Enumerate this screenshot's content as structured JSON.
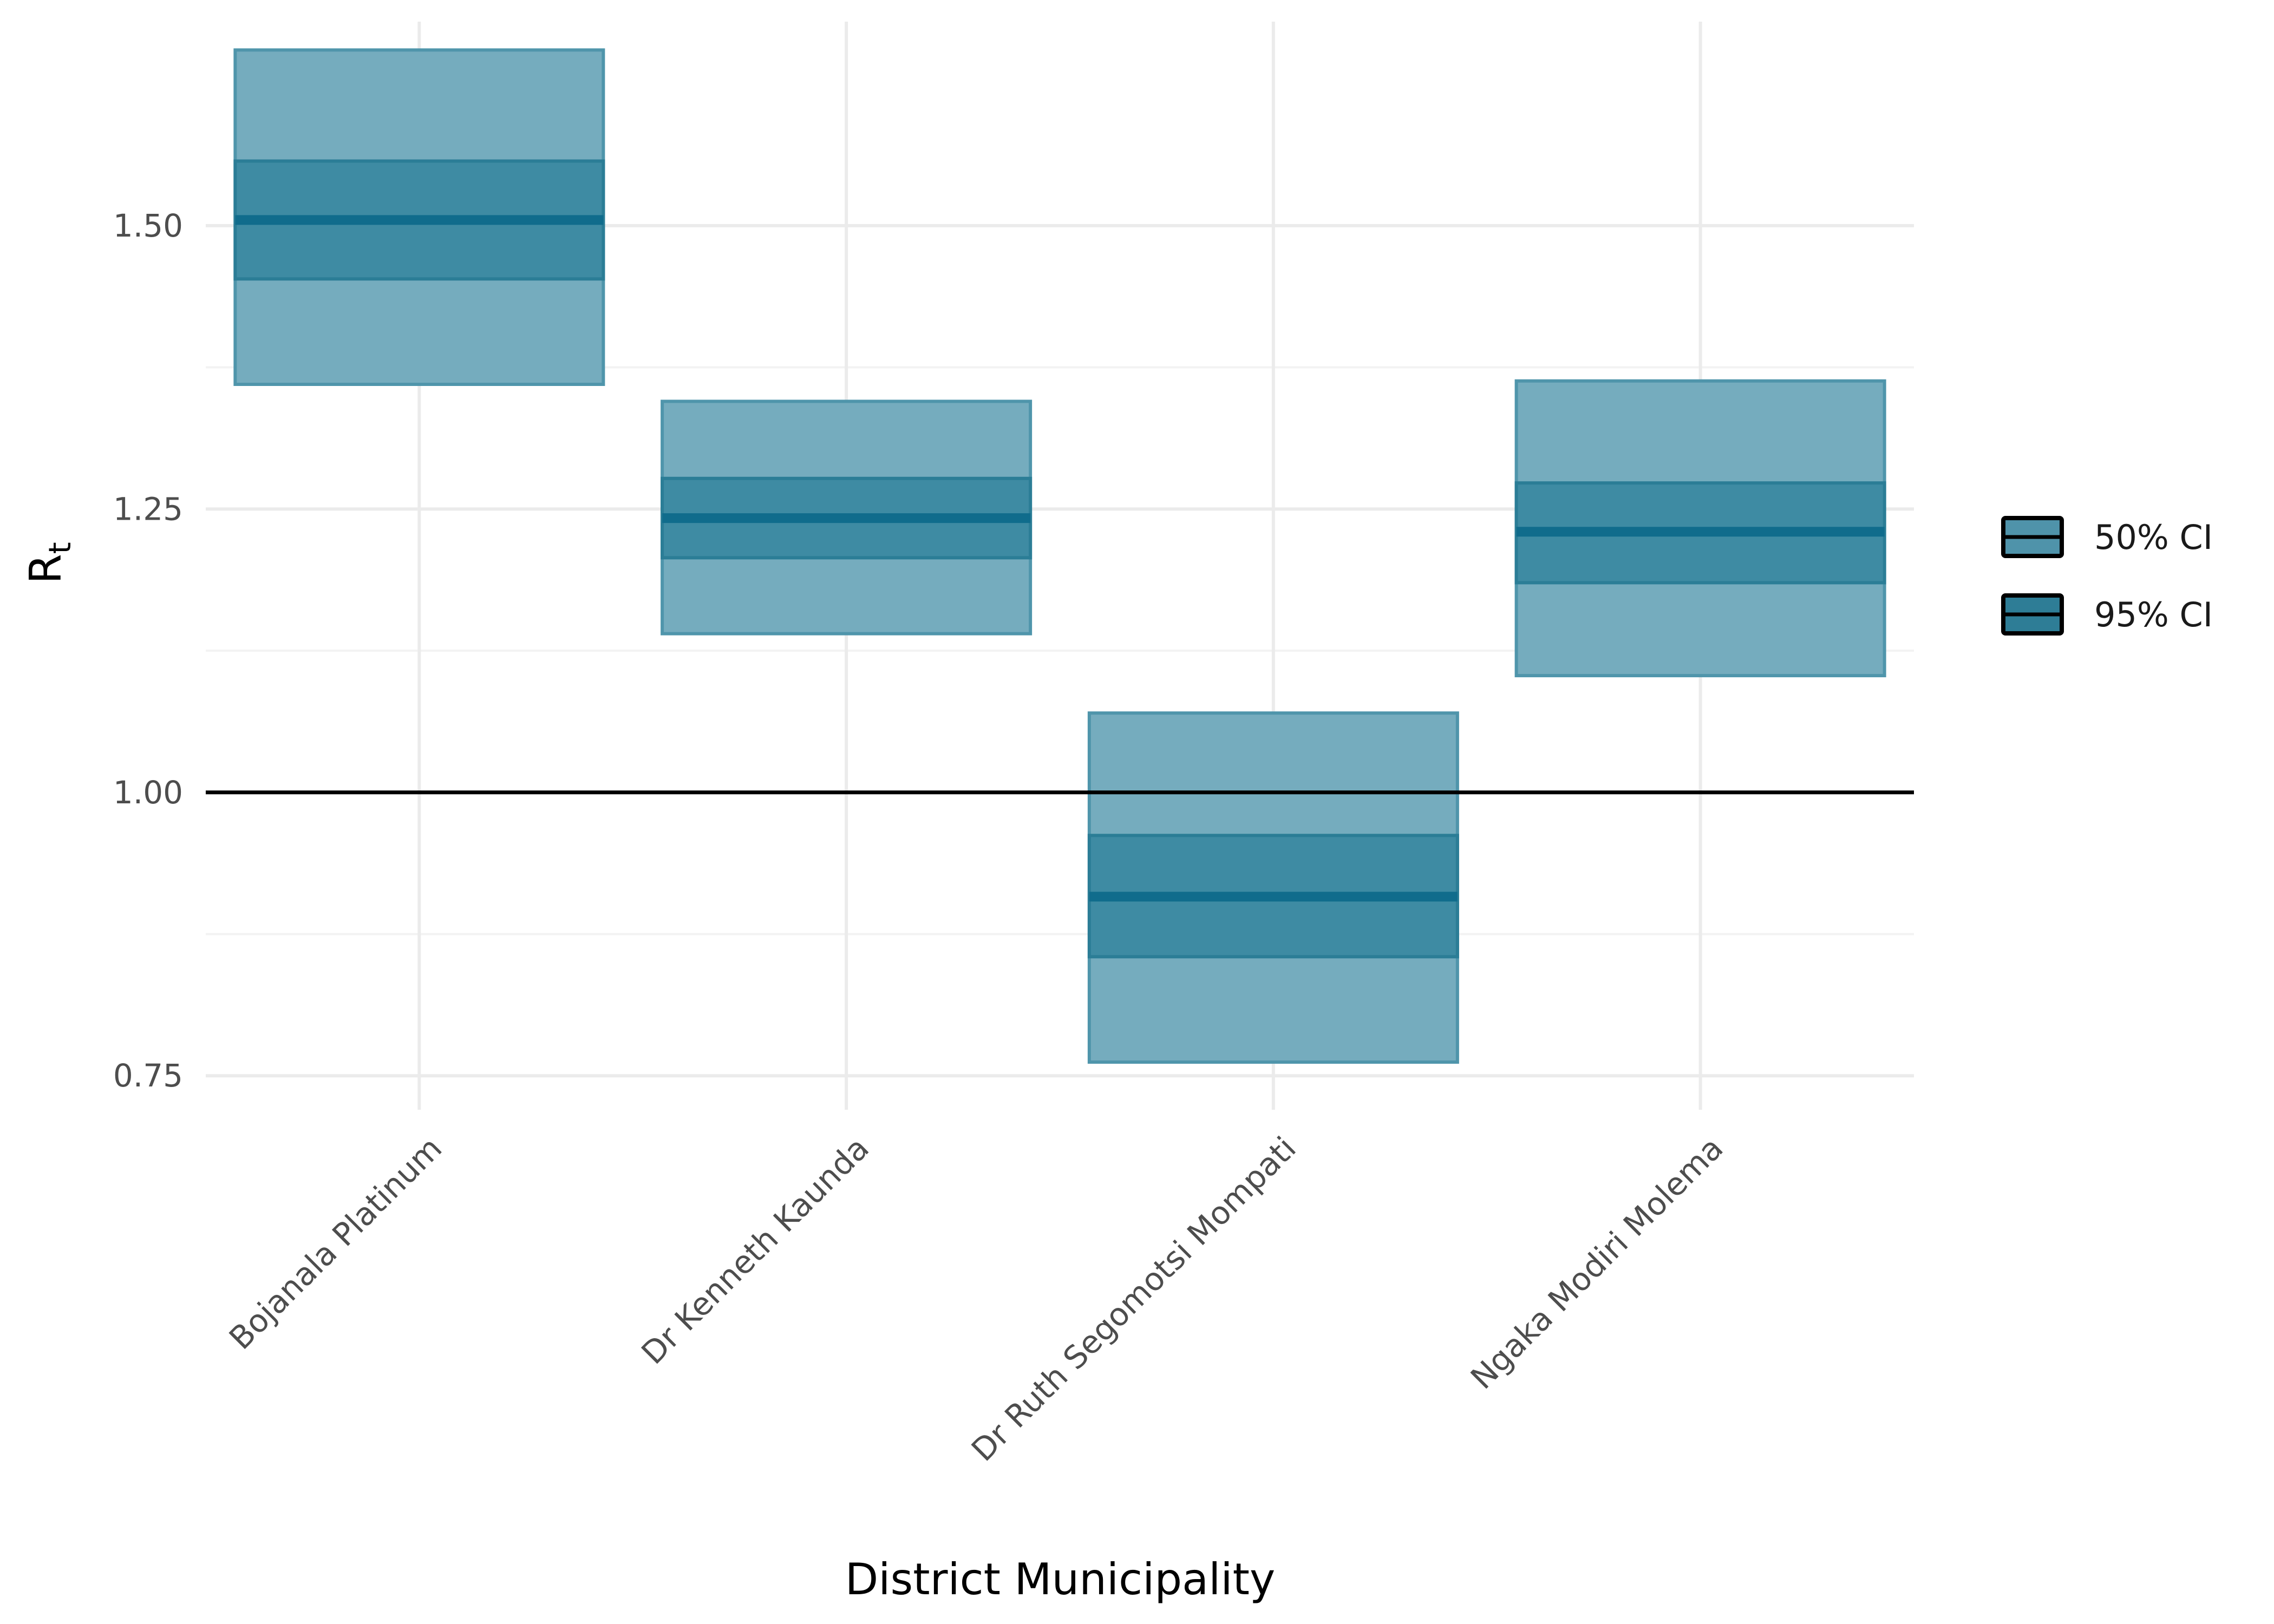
{
  "chart_data": {
    "type": "crossbar",
    "xlabel": "District Municipality",
    "ylabel": "R",
    "ylabel_subscript": "t",
    "ylim": [
      0.72,
      1.68
    ],
    "yticks": [
      0.75,
      1.0,
      1.25,
      1.5
    ],
    "ytick_labels": [
      "0.75",
      "1.00",
      "1.25",
      "1.50"
    ],
    "reference_line": 1.0,
    "grid": true,
    "categories": [
      "Bojanala Platinum",
      "Dr Kenneth Kaunda",
      "Dr Ruth Segomotsi Mompati",
      "Ngaka Modiri Molema"
    ],
    "median": [
      1.505,
      1.242,
      0.908,
      1.23
    ],
    "ci95": [
      [
        1.36,
        1.655
      ],
      [
        1.14,
        1.345
      ],
      [
        0.762,
        1.07
      ],
      [
        1.103,
        1.363
      ]
    ],
    "ci50": [
      [
        1.453,
        1.557
      ],
      [
        1.207,
        1.277
      ],
      [
        0.855,
        0.962
      ],
      [
        1.185,
        1.273
      ]
    ],
    "legend": {
      "position": "right",
      "entries": [
        "50% CI",
        "95% CI"
      ]
    },
    "colors": {
      "ci95_fill": "#75acbe",
      "ci95_stroke": "#4f95ab",
      "ci50_fill": "#3e8ba3",
      "ci50_stroke": "#2b7d96",
      "median_line": "#106c8c",
      "reference_line": "#000000",
      "grid_major": "#ebebeb",
      "grid_minor": "#f3f3f3"
    }
  }
}
